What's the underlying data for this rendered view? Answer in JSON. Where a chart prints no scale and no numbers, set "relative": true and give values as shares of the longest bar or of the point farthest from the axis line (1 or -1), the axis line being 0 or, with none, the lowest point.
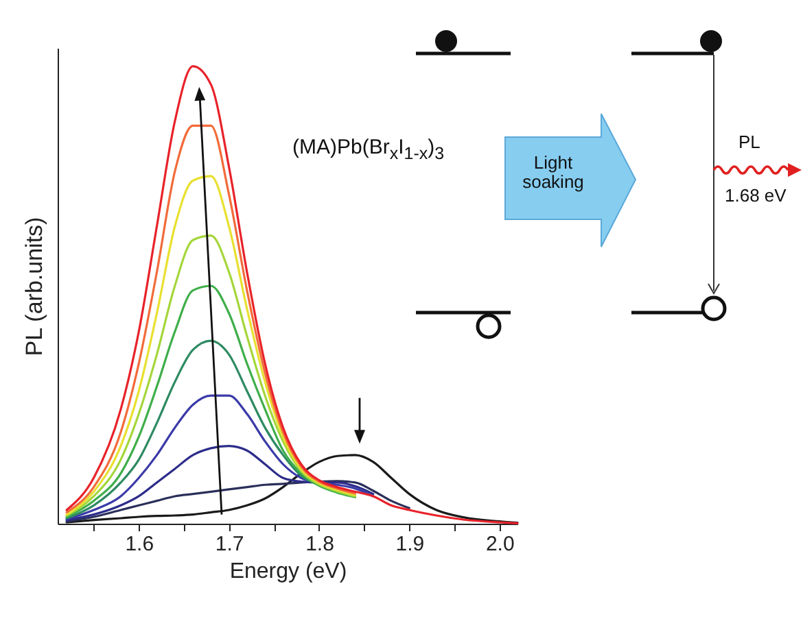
{
  "chart_data": {
    "type": "line",
    "xlabel": "Energy (eV)",
    "ylabel": "PL (arb.units)",
    "relative": true,
    "annotations": [
      "(MA)Pb(Br$_{x}$I$_{1-x}$)$_{3}$",
      "Light soaking",
      "PL",
      "1.68 eV"
    ],
    "x": [
      1.52,
      1.55,
      1.58,
      1.6,
      1.62,
      1.64,
      1.66,
      1.68,
      1.7,
      1.72,
      1.74,
      1.76,
      1.78,
      1.8,
      1.82,
      1.84,
      1.86,
      1.88,
      1.9,
      1.93,
      1.96,
      2.0,
      2.02
    ],
    "xlim": [
      1.51,
      2.02
    ],
    "xticks": [
      {
        "value": 1.55,
        "label": null
      },
      1.6,
      {
        "value": 1.65,
        "label": null
      },
      1.7,
      {
        "value": 1.75,
        "label": null
      },
      1.8,
      {
        "value": 1.85,
        "label": null
      },
      1.9,
      {
        "value": 1.95,
        "label": null
      },
      {
        "value": 2.0,
        "label": "2.0"
      }
    ],
    "grid": false,
    "legend": false,
    "marker": "none",
    "line_style": "solid",
    "series": [
      {
        "color": "#e8222a",
        "values": [
          0.03,
          0.1,
          0.25,
          0.42,
          0.65,
          0.88,
          1,
          0.96,
          0.78,
          0.55,
          0.35,
          0.21,
          0.13,
          0.095,
          0.08,
          0.07,
          0.06,
          0.04,
          0.03,
          0.018,
          0.009,
          0.003,
          0.001
        ]
      },
      {
        "color": "#f26b3a",
        "values": [
          0.025,
          0.08,
          0.2,
          0.35,
          0.55,
          0.77,
          0.87,
          0.87,
          0.72,
          0.51,
          0.33,
          0.2,
          0.125,
          0.092,
          0.077,
          0.066,
          null,
          null,
          null,
          null,
          null,
          null,
          null
        ]
      },
      {
        "color": "#e8e030",
        "values": [
          0.02,
          0.07,
          0.17,
          0.29,
          0.46,
          0.65,
          0.75,
          0.76,
          0.65,
          0.47,
          0.31,
          0.19,
          0.12,
          0.089,
          0.074,
          0.063,
          null,
          null,
          null,
          null,
          null,
          null,
          null
        ]
      },
      {
        "color": "#a5d63a",
        "values": [
          0.018,
          0.06,
          0.14,
          0.24,
          0.37,
          0.52,
          0.62,
          0.63,
          0.55,
          0.41,
          0.28,
          0.18,
          0.115,
          0.086,
          0.071,
          0.06,
          null,
          null,
          null,
          null,
          null,
          null,
          null
        ]
      },
      {
        "color": "#3fae4a",
        "values": [
          0.015,
          0.05,
          0.11,
          0.19,
          0.3,
          0.42,
          0.51,
          0.52,
          0.46,
          0.35,
          0.25,
          0.16,
          0.11,
          0.083,
          0.068,
          0.058,
          null,
          null,
          null,
          null,
          null,
          null,
          null
        ]
      },
      {
        "color": "#2e8a62",
        "values": [
          0.012,
          0.04,
          0.09,
          0.14,
          0.22,
          0.31,
          0.38,
          0.4,
          0.37,
          0.29,
          0.21,
          0.15,
          0.105,
          0.085,
          0.075,
          0.065,
          null,
          null,
          null,
          null,
          null,
          null,
          null
        ]
      },
      {
        "color": "#3a3aa8",
        "values": [
          0.01,
          0.03,
          0.06,
          0.1,
          0.15,
          0.21,
          0.26,
          0.28,
          0.28,
          0.24,
          0.18,
          0.13,
          0.1,
          0.09,
          0.085,
          0.077,
          0.06,
          null,
          null,
          null,
          null,
          null,
          null
        ]
      },
      {
        "color": "#2c2c8a",
        "values": [
          0.008,
          0.02,
          0.04,
          0.06,
          0.09,
          0.12,
          0.15,
          0.165,
          0.17,
          0.16,
          0.13,
          0.1,
          0.092,
          0.09,
          0.09,
          0.082,
          0.065,
          null,
          null,
          null,
          null,
          null,
          null
        ]
      },
      {
        "color": "#2a2f5a",
        "values": [
          0.005,
          0.015,
          0.03,
          0.04,
          0.05,
          0.06,
          0.065,
          0.07,
          0.075,
          0.08,
          0.085,
          0.087,
          0.09,
          0.092,
          0.093,
          0.09,
          0.072,
          0.05,
          0.034,
          null,
          null,
          null,
          null
        ]
      },
      {
        "color": "#1a1a1a",
        "values": [
          0.003,
          0.008,
          0.012,
          0.015,
          0.017,
          0.018,
          0.02,
          0.025,
          0.03,
          0.04,
          0.055,
          0.08,
          0.11,
          0.135,
          0.148,
          0.15,
          0.135,
          0.1,
          0.065,
          0.03,
          0.014,
          0.005,
          0.002
        ]
      }
    ]
  }
}
